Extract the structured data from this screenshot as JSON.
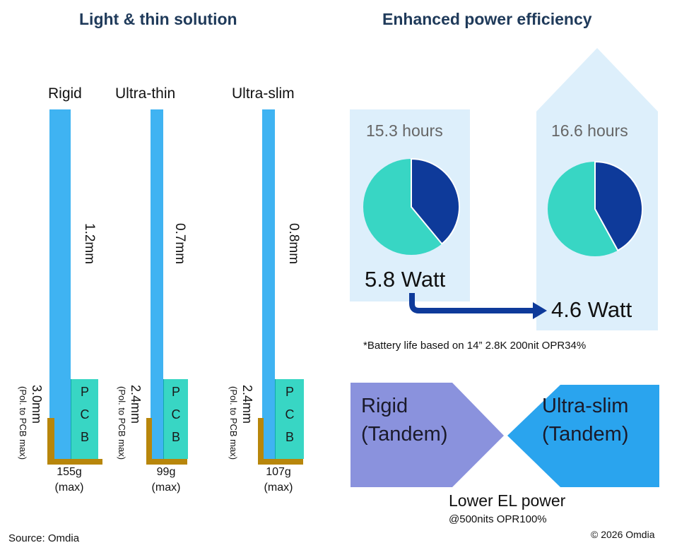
{
  "left": {
    "heading": "Light & thin solution",
    "panels": [
      {
        "name": "Rigid",
        "panel_thickness": "1.2mm",
        "total_thickness": "3.0mm",
        "total_note": "(Pol. to PCB max)",
        "weight": "155g",
        "weight_note": "(max)"
      },
      {
        "name": "Ultra-thin",
        "panel_thickness": "0.7mm",
        "total_thickness": "2.4mm",
        "total_note": "(Pol. to PCB max)",
        "weight": "99g",
        "weight_note": "(max)"
      },
      {
        "name": "Ultra-slim",
        "panel_thickness": "0.8mm",
        "total_thickness": "2.4mm",
        "total_note": "(Pol. to PCB max)",
        "weight": "107g",
        "weight_note": "(max)"
      }
    ],
    "pcb_letters": [
      "P",
      "C",
      "B"
    ]
  },
  "right": {
    "heading": "Enhanced power efficiency",
    "before": {
      "hours": "15.3 hours",
      "watt": "5.8 Watt",
      "pie_share": 0.39
    },
    "after": {
      "hours": "16.6 hours",
      "watt": "4.6 Watt",
      "pie_share": 0.42
    },
    "footnote": "*Battery life based on 14” 2.8K 200nit OPR34%",
    "compare": {
      "left_line1": "Rigid",
      "left_line2": "(Tandem)",
      "right_line1": "Ultra-slim",
      "right_line2": "(Tandem)",
      "caption": "Lower EL power",
      "subcaption": "@500nits OPR100%"
    }
  },
  "source": "Source: Omdia",
  "copyright": "© 2026 Omdia",
  "colors": {
    "panel_blue": "#3fb3f2",
    "pcb_teal": "#38d6c4",
    "frame_brown": "#b8860b",
    "pie_teal": "#38d6c4",
    "pie_navy": "#0e3a9a",
    "arrow_navy": "#0e3a9a",
    "rigid_box": "#8a92dd",
    "slim_box": "#2aa4ee",
    "light_bg": "#ddeffb"
  }
}
